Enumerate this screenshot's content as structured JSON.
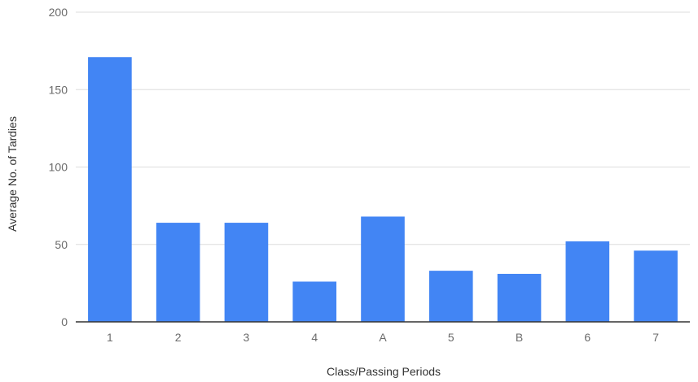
{
  "chart_data": {
    "type": "bar",
    "categories": [
      "1",
      "2",
      "3",
      "4",
      "A",
      "5",
      "B",
      "6",
      "7"
    ],
    "values": [
      171,
      64,
      64,
      26,
      68,
      33,
      31,
      52,
      46
    ],
    "title": "",
    "xlabel": "Class/Passing Periods",
    "ylabel": "Average No. of Tardies",
    "ylim": [
      0,
      200
    ],
    "yticks": [
      "0",
      "50",
      "100",
      "150",
      "200"
    ],
    "grid": true,
    "bar_color": "#4285f4",
    "grid_color": "#dddddd",
    "axis_color": "#333333"
  }
}
